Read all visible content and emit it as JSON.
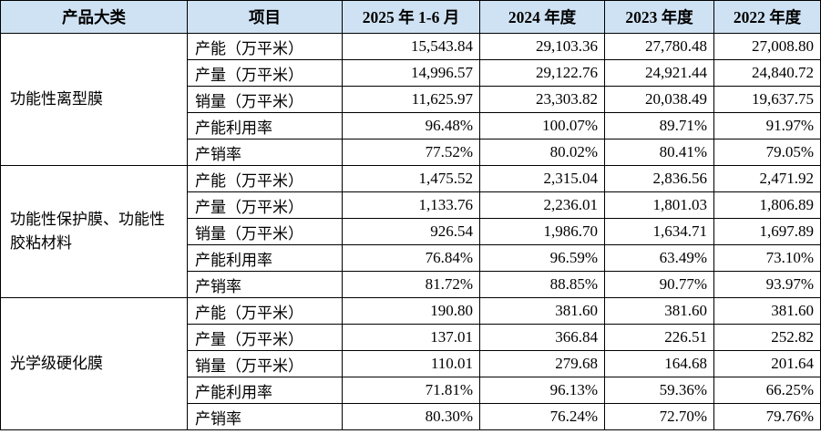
{
  "table": {
    "header": [
      "产品大类",
      "项目",
      "2025 年 1-6 月",
      "2024 年度",
      "2023 年度",
      "2022 年度"
    ],
    "groups": [
      {
        "category": "功能性离型膜",
        "rows": [
          [
            "产能（万平米）",
            "15,543.84",
            "29,103.36",
            "27,780.48",
            "27,008.80"
          ],
          [
            "产量（万平米）",
            "14,996.57",
            "29,122.76",
            "24,921.44",
            "24,840.72"
          ],
          [
            "销量（万平米）",
            "11,625.97",
            "23,303.82",
            "20,038.49",
            "19,637.75"
          ],
          [
            "产能利用率",
            "96.48%",
            "100.07%",
            "89.71%",
            "91.97%"
          ],
          [
            "产销率",
            "77.52%",
            "80.02%",
            "80.41%",
            "79.05%"
          ]
        ]
      },
      {
        "category": "功能性保护膜、功能性胶粘材料",
        "rows": [
          [
            "产能（万平米）",
            "1,475.52",
            "2,315.04",
            "2,836.56",
            "2,471.92"
          ],
          [
            "产量（万平米）",
            "1,133.76",
            "2,236.01",
            "1,801.03",
            "1,806.89"
          ],
          [
            "销量（万平米）",
            "926.54",
            "1,986.70",
            "1,634.71",
            "1,697.89"
          ],
          [
            "产能利用率",
            "76.84%",
            "96.59%",
            "63.49%",
            "73.10%"
          ],
          [
            "产销率",
            "81.72%",
            "88.85%",
            "90.77%",
            "93.97%"
          ]
        ]
      },
      {
        "category": "光学级硬化膜",
        "rows": [
          [
            "产能（万平米）",
            "190.80",
            "381.60",
            "381.60",
            "381.60"
          ],
          [
            "产量（万平米）",
            "137.01",
            "366.84",
            "226.51",
            "252.82"
          ],
          [
            "销量（万平米）",
            "110.01",
            "279.68",
            "164.68",
            "201.64"
          ],
          [
            "产能利用率",
            "71.81%",
            "96.13%",
            "59.36%",
            "66.25%"
          ],
          [
            "产销率",
            "80.30%",
            "76.24%",
            "72.70%",
            "79.76%"
          ]
        ]
      }
    ]
  }
}
